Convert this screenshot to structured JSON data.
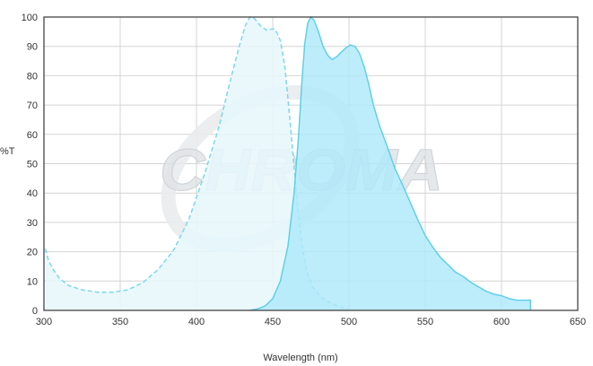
{
  "chart_data": {
    "type": "area",
    "title": "",
    "xlabel": "Wavelength (nm)",
    "ylabel": "%T",
    "xlim": [
      300,
      650
    ],
    "ylim": [
      0,
      100
    ],
    "xticks": [
      300,
      350,
      400,
      450,
      500,
      550,
      600,
      650
    ],
    "yticks": [
      0,
      10,
      20,
      30,
      40,
      50,
      60,
      70,
      80,
      90,
      100
    ],
    "grid": true,
    "legend": "none",
    "watermark": "CHROMA",
    "series": [
      {
        "style": "dashed-outline-light-fill",
        "stroke": "#7ad8ec",
        "fill": "#e6f7fc",
        "points": [
          [
            301,
            21
          ],
          [
            303,
            17
          ],
          [
            306,
            14
          ],
          [
            310,
            11
          ],
          [
            316,
            8.5
          ],
          [
            325,
            7
          ],
          [
            335,
            6.2
          ],
          [
            345,
            6.2
          ],
          [
            355,
            7
          ],
          [
            365,
            9.5
          ],
          [
            375,
            14
          ],
          [
            385,
            20.5
          ],
          [
            395,
            31
          ],
          [
            405,
            46
          ],
          [
            415,
            63
          ],
          [
            422,
            78
          ],
          [
            428,
            90
          ],
          [
            432,
            97
          ],
          [
            435,
            100
          ],
          [
            438,
            99.5
          ],
          [
            442,
            97
          ],
          [
            446,
            95.5
          ],
          [
            450,
            96
          ],
          [
            452,
            95.5
          ],
          [
            455,
            92
          ],
          [
            458,
            83
          ],
          [
            460,
            72
          ],
          [
            463,
            55
          ],
          [
            466,
            37
          ],
          [
            469,
            23
          ],
          [
            472,
            14
          ],
          [
            476,
            8
          ],
          [
            482,
            4.5
          ],
          [
            488,
            2.5
          ],
          [
            494,
            1.2
          ],
          [
            500,
            0.5
          ]
        ]
      },
      {
        "style": "solid-outline-medium-fill",
        "stroke": "#5fd0ea",
        "fill": "#aee9fa",
        "points": [
          [
            435,
            0
          ],
          [
            440,
            0.5
          ],
          [
            445,
            1.5
          ],
          [
            450,
            4
          ],
          [
            455,
            10
          ],
          [
            460,
            22
          ],
          [
            464,
            40
          ],
          [
            467,
            60
          ],
          [
            469,
            77
          ],
          [
            471,
            91
          ],
          [
            473,
            98
          ],
          [
            475,
            100
          ],
          [
            477,
            99
          ],
          [
            480,
            95
          ],
          [
            483,
            90
          ],
          [
            486,
            87
          ],
          [
            489,
            85.5
          ],
          [
            492,
            86.5
          ],
          [
            495,
            88
          ],
          [
            498,
            89.5
          ],
          [
            501,
            90.5
          ],
          [
            504,
            90
          ],
          [
            507,
            87.5
          ],
          [
            510,
            83
          ],
          [
            513,
            77
          ],
          [
            516,
            70
          ],
          [
            520,
            63
          ],
          [
            525,
            56
          ],
          [
            530,
            48.5
          ],
          [
            535,
            43
          ],
          [
            540,
            37
          ],
          [
            545,
            31
          ],
          [
            550,
            25.5
          ],
          [
            555,
            21.5
          ],
          [
            560,
            18
          ],
          [
            565,
            15.5
          ],
          [
            570,
            13
          ],
          [
            575,
            11.5
          ],
          [
            580,
            9.5
          ],
          [
            585,
            8
          ],
          [
            590,
            6.5
          ],
          [
            595,
            5.5
          ],
          [
            600,
            5
          ],
          [
            605,
            4
          ],
          [
            610,
            3.5
          ],
          [
            615,
            3.5
          ],
          [
            619,
            3.5
          ],
          [
            619,
            0
          ]
        ]
      }
    ]
  }
}
